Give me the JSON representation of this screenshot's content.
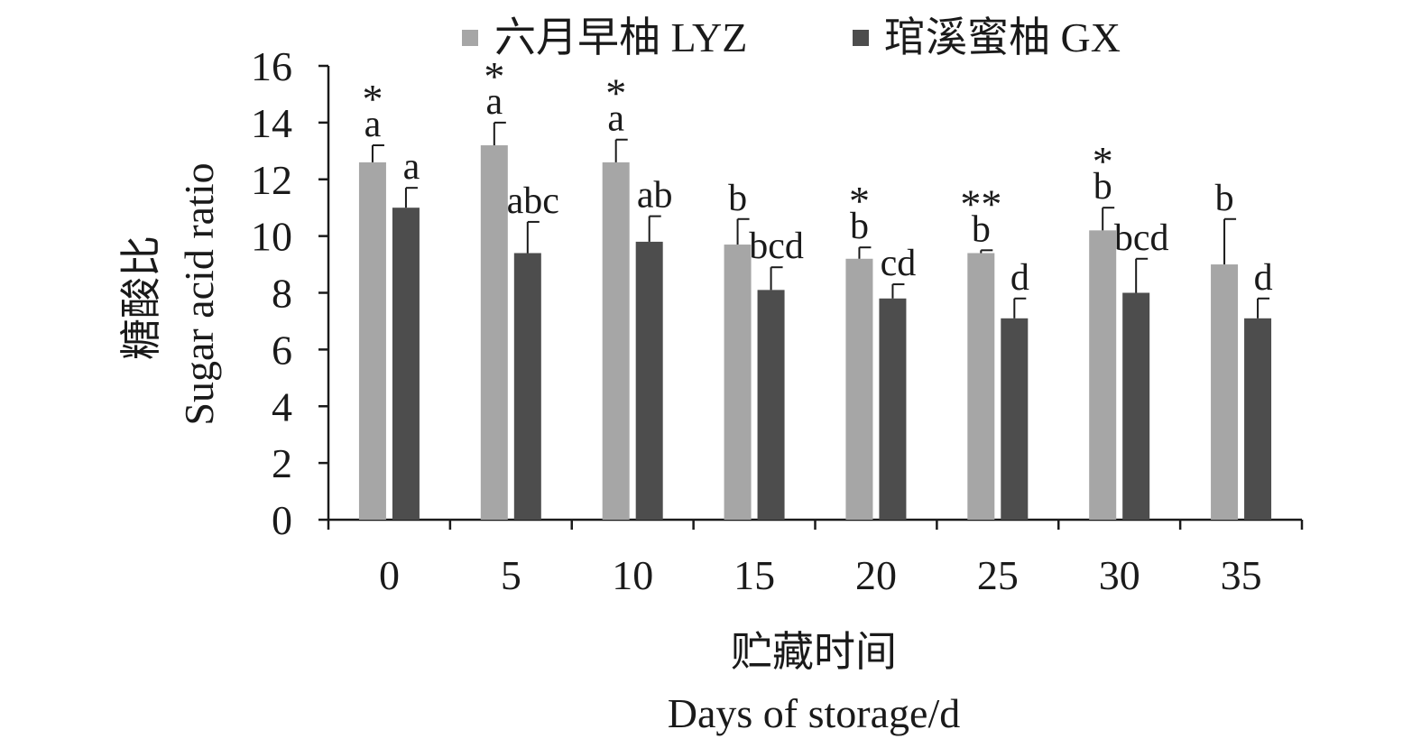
{
  "chart_data": {
    "type": "bar",
    "categories": [
      "0",
      "5",
      "10",
      "15",
      "20",
      "25",
      "30",
      "35"
    ],
    "series": [
      {
        "name": "六月早柚 LYZ",
        "color": "#a6a6a6",
        "values": [
          12.6,
          13.2,
          12.6,
          9.7,
          9.2,
          9.4,
          10.2,
          9.0
        ],
        "errors": [
          0.6,
          0.8,
          0.8,
          0.9,
          0.4,
          0.1,
          0.8,
          1.6
        ],
        "letters": [
          "a",
          "a",
          "a",
          "b",
          "b",
          "b",
          "b",
          "b"
        ]
      },
      {
        "name": "琯溪蜜柚 GX",
        "color": "#4d4d4d",
        "values": [
          11.0,
          9.4,
          9.8,
          8.1,
          7.8,
          7.1,
          8.0,
          7.1
        ],
        "errors": [
          0.7,
          1.1,
          0.9,
          0.8,
          0.5,
          0.7,
          1.2,
          0.7
        ],
        "letters": [
          "a",
          "abc",
          "ab",
          "bcd",
          "cd",
          "d",
          "bcd",
          "d"
        ]
      }
    ],
    "significance": [
      "*",
      "*",
      "*",
      "",
      "*",
      "**",
      "*",
      ""
    ],
    "ylim": [
      0,
      16
    ],
    "yticks": [
      "0",
      "2",
      "4",
      "6",
      "8",
      "10",
      "12",
      "14",
      "16"
    ],
    "ylabel_cn": "糖酸比",
    "ylabel_en": "Sugar acid ratio",
    "xlabel_cn": "贮藏时间",
    "xlabel_en": "Days of storage/d",
    "legend_position": "top",
    "grid": false
  }
}
